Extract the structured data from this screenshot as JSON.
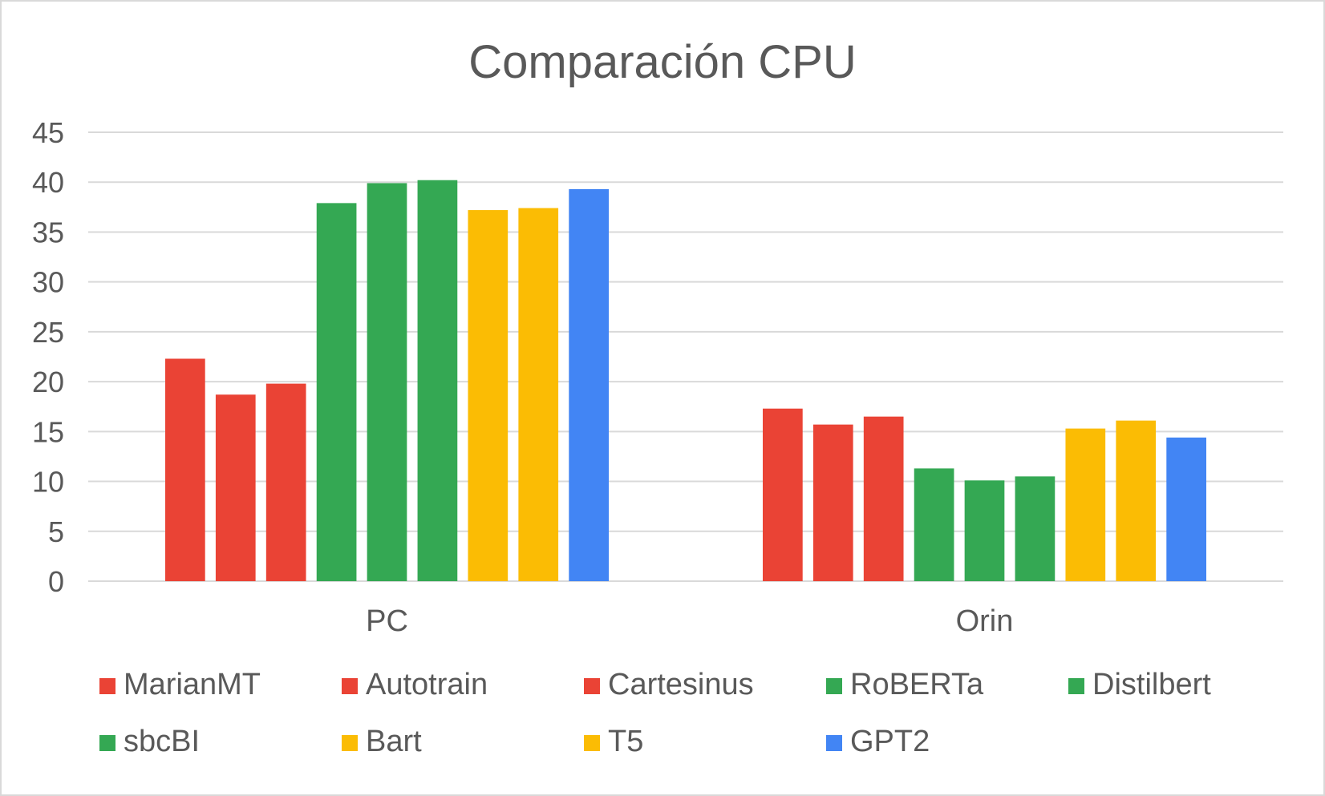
{
  "chart_data": {
    "type": "bar",
    "title": "Comparación CPU",
    "xlabel": "",
    "ylabel": "",
    "categories": [
      "PC",
      "Orin"
    ],
    "ylim": [
      0,
      45
    ],
    "yticks": [
      0,
      5,
      10,
      15,
      20,
      25,
      30,
      35,
      40,
      45
    ],
    "grid": true,
    "legend_position": "bottom",
    "series": [
      {
        "name": "MarianMT",
        "color": "#ea4335",
        "values": [
          22.3,
          17.3
        ]
      },
      {
        "name": "Autotrain",
        "color": "#ea4335",
        "values": [
          18.7,
          15.7
        ]
      },
      {
        "name": "Cartesinus",
        "color": "#ea4335",
        "values": [
          19.8,
          16.5
        ]
      },
      {
        "name": "RoBERTa",
        "color": "#34a853",
        "values": [
          37.9,
          11.3
        ]
      },
      {
        "name": "Distilbert",
        "color": "#34a853",
        "values": [
          39.9,
          10.1
        ]
      },
      {
        "name": "sbcBI",
        "color": "#34a853",
        "values": [
          40.2,
          10.5
        ]
      },
      {
        "name": "Bart",
        "color": "#fbbc04",
        "values": [
          37.2,
          15.3
        ]
      },
      {
        "name": "T5",
        "color": "#fbbc04",
        "values": [
          37.4,
          16.1
        ]
      },
      {
        "name": "GPT2",
        "color": "#4285f4",
        "values": [
          39.3,
          14.4
        ]
      }
    ]
  }
}
